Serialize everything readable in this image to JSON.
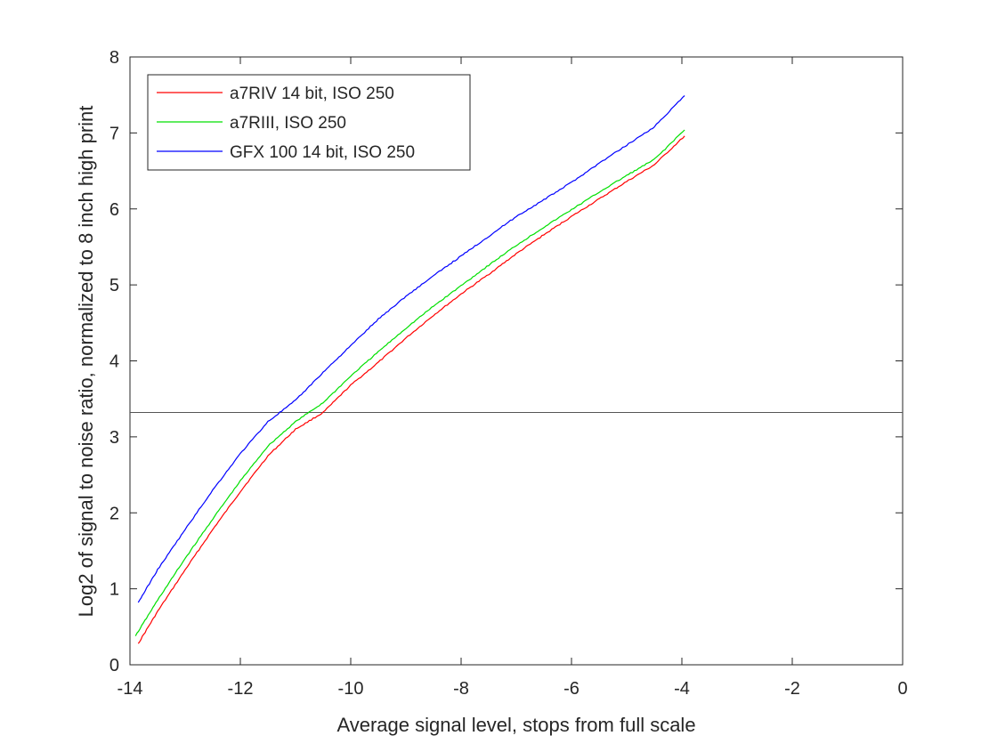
{
  "chart_data": {
    "type": "line",
    "title": "",
    "xlabel": "Average signal level, stops from full scale",
    "ylabel": "Log2 of signal to noise ratio, normalized to 8 inch high print",
    "xlim": [
      -14,
      0
    ],
    "ylim": [
      0,
      8
    ],
    "xticks": [
      -14,
      -12,
      -10,
      -8,
      -6,
      -4,
      -2,
      0
    ],
    "yticks": [
      0,
      1,
      2,
      3,
      4,
      5,
      6,
      7,
      8
    ],
    "grid": false,
    "legend_position": "top-left",
    "reference_line": {
      "y": 3.32,
      "color": "#555555"
    },
    "series": [
      {
        "name": "a7RIV 14 bit, ISO 250",
        "color": "#ff0000",
        "points": [
          [
            -13.85,
            0.28
          ],
          [
            -13.5,
            0.7
          ],
          [
            -13.0,
            1.25
          ],
          [
            -12.5,
            1.78
          ],
          [
            -12.0,
            2.28
          ],
          [
            -11.5,
            2.75
          ],
          [
            -11.0,
            3.1
          ],
          [
            -10.5,
            3.32
          ],
          [
            -10.0,
            3.68
          ],
          [
            -9.5,
            3.98
          ],
          [
            -9.0,
            4.3
          ],
          [
            -8.5,
            4.6
          ],
          [
            -8.0,
            4.88
          ],
          [
            -7.5,
            5.14
          ],
          [
            -7.0,
            5.41
          ],
          [
            -6.5,
            5.66
          ],
          [
            -6.0,
            5.9
          ],
          [
            -5.5,
            6.13
          ],
          [
            -5.0,
            6.36
          ],
          [
            -4.5,
            6.58
          ],
          [
            -3.95,
            6.96
          ]
        ]
      },
      {
        "name": "a7RIII, ISO 250",
        "color": "#00e000",
        "points": [
          [
            -13.9,
            0.38
          ],
          [
            -13.5,
            0.85
          ],
          [
            -13.0,
            1.4
          ],
          [
            -12.5,
            1.92
          ],
          [
            -12.0,
            2.42
          ],
          [
            -11.5,
            2.88
          ],
          [
            -11.0,
            3.2
          ],
          [
            -10.5,
            3.45
          ],
          [
            -10.0,
            3.8
          ],
          [
            -9.5,
            4.12
          ],
          [
            -9.0,
            4.43
          ],
          [
            -8.5,
            4.72
          ],
          [
            -8.0,
            4.99
          ],
          [
            -7.5,
            5.26
          ],
          [
            -7.0,
            5.52
          ],
          [
            -6.5,
            5.76
          ],
          [
            -6.0,
            5.99
          ],
          [
            -5.5,
            6.22
          ],
          [
            -5.0,
            6.44
          ],
          [
            -4.5,
            6.65
          ],
          [
            -3.95,
            7.04
          ]
        ]
      },
      {
        "name": "GFX 100 14 bit, ISO 250",
        "color": "#0000ff",
        "points": [
          [
            -13.85,
            0.82
          ],
          [
            -13.5,
            1.25
          ],
          [
            -13.0,
            1.78
          ],
          [
            -12.5,
            2.3
          ],
          [
            -12.0,
            2.78
          ],
          [
            -11.5,
            3.2
          ],
          [
            -11.0,
            3.48
          ],
          [
            -10.5,
            3.85
          ],
          [
            -10.0,
            4.2
          ],
          [
            -9.5,
            4.55
          ],
          [
            -9.0,
            4.85
          ],
          [
            -8.5,
            5.12
          ],
          [
            -8.0,
            5.38
          ],
          [
            -7.5,
            5.64
          ],
          [
            -7.0,
            5.9
          ],
          [
            -6.5,
            6.12
          ],
          [
            -6.0,
            6.35
          ],
          [
            -5.5,
            6.6
          ],
          [
            -5.0,
            6.84
          ],
          [
            -4.5,
            7.08
          ],
          [
            -3.95,
            7.49
          ]
        ]
      }
    ]
  }
}
